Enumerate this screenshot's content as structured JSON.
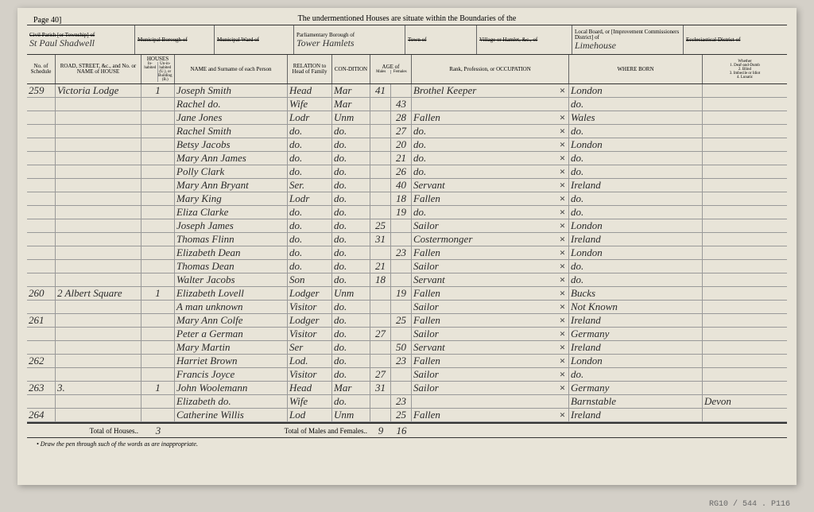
{
  "page_number": "Page 40]",
  "boundary_text": "The undermentioned Houses are situate within the Boundaries of the",
  "header": {
    "parish_label": "Civil Parish [or Township] of",
    "parish_value": "St Paul Shadwell",
    "borough_label": "Municipal Borough of",
    "ward_label": "Municipal Ward of",
    "parl_label": "Parliamentary Borough of",
    "parl_value": "Tower Hamlets",
    "town_label": "Town of",
    "village_label": "Village or Hamlet, &c., of",
    "local_label": "Local Board, or [Improvement Commissioners District] of",
    "local_value": "Limehouse",
    "eccles_label": "Ecclesiastical District of"
  },
  "columns": {
    "sched": "No. of Schedule",
    "road": "ROAD, STREET, &c., and No. or NAME of HOUSE",
    "houses": "HOUSES",
    "houses_sub1": "In-habited",
    "houses_sub2": "Un-in-habited (U.), or Building (B.)",
    "name": "NAME and Surname of each Person",
    "relation": "RELATION to Head of Family",
    "condition": "CON-DITION",
    "age": "AGE of",
    "age_m": "Males",
    "age_f": "Females",
    "occupation": "Rank, Profession, or OCCUPATION",
    "born": "WHERE BORN",
    "disability": "Whether\n1. Deaf-and-Dumb\n2. Blind\n3. Imbecile or Idiot\n4. Lunatic"
  },
  "rows": [
    {
      "sched": "259",
      "road": "Victoria Lodge",
      "houses": "1",
      "name": "Joseph Smith",
      "rel": "Head",
      "cond": "Mar",
      "agem": "41",
      "agef": "",
      "occ": "Brothel Keeper",
      "born": "London",
      "dis": ""
    },
    {
      "sched": "",
      "road": "",
      "houses": "",
      "name": "Rachel do.",
      "rel": "Wife",
      "cond": "Mar",
      "agem": "",
      "agef": "43",
      "occ": "",
      "born": "do.",
      "dis": ""
    },
    {
      "sched": "",
      "road": "",
      "houses": "",
      "name": "Jane Jones",
      "rel": "Lodr",
      "cond": "Unm",
      "agem": "",
      "agef": "28",
      "occ": "Fallen",
      "born": "Wales",
      "dis": ""
    },
    {
      "sched": "",
      "road": "",
      "houses": "",
      "name": "Rachel Smith",
      "rel": "do.",
      "cond": "do.",
      "agem": "",
      "agef": "27",
      "occ": "do.",
      "born": "do.",
      "dis": ""
    },
    {
      "sched": "",
      "road": "",
      "houses": "",
      "name": "Betsy Jacobs",
      "rel": "do.",
      "cond": "do.",
      "agem": "",
      "agef": "20",
      "occ": "do.",
      "born": "London",
      "dis": ""
    },
    {
      "sched": "",
      "road": "",
      "houses": "",
      "name": "Mary Ann James",
      "rel": "do.",
      "cond": "do.",
      "agem": "",
      "agef": "21",
      "occ": "do.",
      "born": "do.",
      "dis": ""
    },
    {
      "sched": "",
      "road": "",
      "houses": "",
      "name": "Polly Clark",
      "rel": "do.",
      "cond": "do.",
      "agem": "",
      "agef": "26",
      "occ": "do.",
      "born": "do.",
      "dis": ""
    },
    {
      "sched": "",
      "road": "",
      "houses": "",
      "name": "Mary Ann Bryant",
      "rel": "Ser.",
      "cond": "do.",
      "agem": "",
      "agef": "40",
      "occ": "Servant",
      "born": "Ireland",
      "dis": ""
    },
    {
      "sched": "",
      "road": "",
      "houses": "",
      "name": "Mary King",
      "rel": "Lodr",
      "cond": "do.",
      "agem": "",
      "agef": "18",
      "occ": "Fallen",
      "born": "do.",
      "dis": ""
    },
    {
      "sched": "",
      "road": "",
      "houses": "",
      "name": "Eliza Clarke",
      "rel": "do.",
      "cond": "do.",
      "agem": "",
      "agef": "19",
      "occ": "do.",
      "born": "do.",
      "dis": ""
    },
    {
      "sched": "",
      "road": "",
      "houses": "",
      "name": "Joseph James",
      "rel": "do.",
      "cond": "do.",
      "agem": "25",
      "agef": "",
      "occ": "Sailor",
      "born": "London",
      "dis": ""
    },
    {
      "sched": "",
      "road": "",
      "houses": "",
      "name": "Thomas Flinn",
      "rel": "do.",
      "cond": "do.",
      "agem": "31",
      "agef": "",
      "occ": "Costermonger",
      "born": "Ireland",
      "dis": ""
    },
    {
      "sched": "",
      "road": "",
      "houses": "",
      "name": "Elizabeth Dean",
      "rel": "do.",
      "cond": "do.",
      "agem": "",
      "agef": "23",
      "occ": "Fallen",
      "born": "London",
      "dis": ""
    },
    {
      "sched": "",
      "road": "",
      "houses": "",
      "name": "Thomas Dean",
      "rel": "do.",
      "cond": "do.",
      "agem": "21",
      "agef": "",
      "occ": "Sailor",
      "born": "do.",
      "dis": ""
    },
    {
      "sched": "",
      "road": "",
      "houses": "",
      "name": "Walter Jacobs",
      "rel": "Son",
      "cond": "do.",
      "agem": "18",
      "agef": "",
      "occ": "Servant",
      "born": "do.",
      "dis": ""
    },
    {
      "sched": "260",
      "road": "2 Albert Square",
      "houses": "1",
      "name": "Elizabeth Lovell",
      "rel": "Lodger",
      "cond": "Unm",
      "agem": "",
      "agef": "19",
      "occ": "Fallen",
      "born": "Bucks",
      "dis": ""
    },
    {
      "sched": "",
      "road": "",
      "houses": "",
      "name": "A man unknown",
      "rel": "Visitor",
      "cond": "do.",
      "agem": "",
      "agef": "",
      "occ": "Sailor",
      "born": "Not Known",
      "dis": ""
    },
    {
      "sched": "261",
      "road": "",
      "houses": "",
      "name": "Mary Ann Colfe",
      "rel": "Lodger",
      "cond": "do.",
      "agem": "",
      "agef": "25",
      "occ": "Fallen",
      "born": "Ireland",
      "dis": ""
    },
    {
      "sched": "",
      "road": "",
      "houses": "",
      "name": "Peter a German",
      "rel": "Visitor",
      "cond": "do.",
      "agem": "27",
      "agef": "",
      "occ": "Sailor",
      "born": "Germany",
      "dis": ""
    },
    {
      "sched": "",
      "road": "",
      "houses": "",
      "name": "Mary Martin",
      "rel": "Ser",
      "cond": "do.",
      "agem": "",
      "agef": "50",
      "occ": "Servant",
      "born": "Ireland",
      "dis": ""
    },
    {
      "sched": "262",
      "road": "",
      "houses": "",
      "name": "Harriet Brown",
      "rel": "Lod.",
      "cond": "do.",
      "agem": "",
      "agef": "23",
      "occ": "Fallen",
      "born": "London",
      "dis": ""
    },
    {
      "sched": "",
      "road": "",
      "houses": "",
      "name": "Francis Joyce",
      "rel": "Visitor",
      "cond": "do.",
      "agem": "27",
      "agef": "",
      "occ": "Sailor",
      "born": "do.",
      "dis": ""
    },
    {
      "sched": "263",
      "road": "3.",
      "houses": "1",
      "name": "John Woolemann",
      "rel": "Head",
      "cond": "Mar",
      "agem": "31",
      "agef": "",
      "occ": "Sailor",
      "born": "Germany",
      "dis": ""
    },
    {
      "sched": "",
      "road": "",
      "houses": "",
      "name": "Elizabeth do.",
      "rel": "Wife",
      "cond": "do.",
      "agem": "",
      "agef": "23",
      "occ": "",
      "born": "Barnstable",
      "dis": "Devon"
    },
    {
      "sched": "264",
      "road": "",
      "houses": "",
      "name": "Catherine Willis",
      "rel": "Lod",
      "cond": "Unm",
      "agem": "",
      "agef": "25",
      "occ": "Fallen",
      "born": "Ireland",
      "dis": ""
    }
  ],
  "totals": {
    "houses_label": "Total of Houses..",
    "houses_val": "3",
    "mf_label": "Total of Males and Females..",
    "males": "9",
    "females": "16"
  },
  "footnote": "• Draw the pen through such of the words as are inappropriate.",
  "ref": "RG10 / 544 . P116"
}
